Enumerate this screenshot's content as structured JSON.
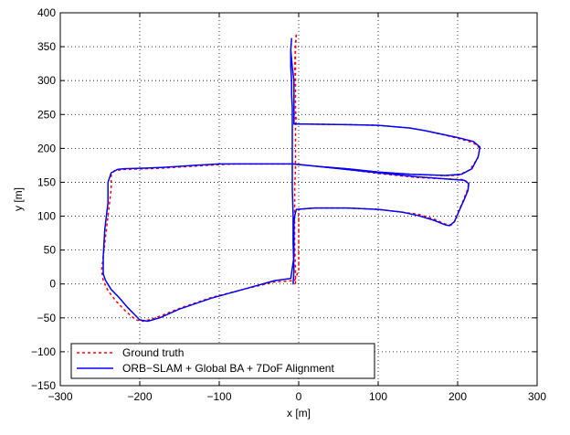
{
  "chart_data": {
    "type": "line",
    "xlabel": "x [m]",
    "ylabel": "y [m]",
    "xlim": [
      -300,
      300
    ],
    "ylim": [
      -150,
      400
    ],
    "xticks": [
      -300,
      -200,
      -100,
      0,
      100,
      200,
      300
    ],
    "yticks": [
      -150,
      -100,
      -50,
      0,
      50,
      100,
      150,
      200,
      250,
      300,
      350,
      400
    ],
    "xtick_labels": [
      "−300",
      "−200",
      "−100",
      "0",
      "100",
      "200",
      "300"
    ],
    "ytick_labels": [
      "−150",
      "−100",
      "−50",
      "0",
      "50",
      "100",
      "150",
      "200",
      "250",
      "300",
      "350",
      "400"
    ],
    "grid": true,
    "legend_position": "bottom-left",
    "series": [
      {
        "name": "Ground truth",
        "color": "#ff0000",
        "style": "dotted",
        "points": [
          [
            -4,
            0
          ],
          [
            -4,
            20
          ],
          [
            -5,
            60
          ],
          [
            -5,
            100
          ],
          [
            -5,
            140
          ],
          [
            -4,
            170
          ],
          [
            -4,
            200
          ],
          [
            -4,
            240
          ],
          [
            -4,
            280
          ],
          [
            -4,
            320
          ],
          [
            -4,
            345
          ],
          [
            -3,
            370
          ],
          [
            -3,
            370
          ],
          [
            -4,
            355
          ],
          [
            -5,
            320
          ],
          [
            -4,
            290
          ],
          [
            -4,
            260
          ],
          [
            -3,
            236
          ],
          [
            8,
            236
          ],
          [
            60,
            235
          ],
          [
            100,
            234
          ],
          [
            140,
            230
          ],
          [
            160,
            226
          ],
          [
            200,
            215
          ],
          [
            220,
            208
          ],
          [
            228,
            200
          ],
          [
            225,
            185
          ],
          [
            215,
            168
          ],
          [
            200,
            160
          ],
          [
            178,
            160
          ],
          [
            140,
            162
          ],
          [
            100,
            165
          ],
          [
            60,
            170
          ],
          [
            20,
            174
          ],
          [
            -5,
            177
          ],
          [
            -40,
            177
          ],
          [
            -80,
            177
          ],
          [
            -100,
            176
          ],
          [
            -130,
            174
          ],
          [
            -170,
            171
          ],
          [
            -190,
            170
          ],
          [
            -220,
            169
          ],
          [
            -232,
            167
          ],
          [
            -236,
            160
          ],
          [
            -236,
            140
          ],
          [
            -240,
            100
          ],
          [
            -244,
            60
          ],
          [
            -248,
            20
          ],
          [
            -246,
            5
          ],
          [
            -240,
            -10
          ],
          [
            -230,
            -25
          ],
          [
            -218,
            -40
          ],
          [
            -205,
            -53
          ],
          [
            -195,
            -55
          ],
          [
            -180,
            -50
          ],
          [
            -150,
            -36
          ],
          [
            -110,
            -20
          ],
          [
            -70,
            -8
          ],
          [
            -30,
            3
          ],
          [
            -5,
            5
          ],
          [
            0,
            20
          ],
          [
            0,
            60
          ],
          [
            0,
            100
          ],
          [
            0,
            110
          ],
          [
            20,
            112
          ],
          [
            60,
            112
          ],
          [
            100,
            110
          ],
          [
            130,
            106
          ],
          [
            150,
            103
          ],
          [
            170,
            96
          ],
          [
            185,
            88
          ],
          [
            192,
            87
          ],
          [
            196,
            92
          ],
          [
            200,
            104
          ],
          [
            206,
            120
          ],
          [
            212,
            138
          ],
          [
            214,
            148
          ],
          [
            208,
            154
          ],
          [
            185,
            155
          ],
          [
            150,
            157
          ],
          [
            100,
            163
          ],
          [
            60,
            169
          ],
          [
            20,
            174
          ],
          [
            -5,
            177
          ]
        ]
      },
      {
        "name": "ORB−SLAM + Global BA + 7DoF Alignment",
        "color": "#0000ff",
        "style": "solid",
        "points": [
          [
            -7,
            0
          ],
          [
            -6,
            20
          ],
          [
            -7,
            60
          ],
          [
            -7,
            100
          ],
          [
            -8,
            140
          ],
          [
            -8,
            170
          ],
          [
            -8,
            200
          ],
          [
            -8,
            240
          ],
          [
            -8,
            260
          ],
          [
            -9,
            280
          ],
          [
            -9,
            300
          ],
          [
            -10,
            320
          ],
          [
            -10,
            345
          ],
          [
            -9,
            362
          ],
          [
            -9,
            362
          ],
          [
            -10,
            345
          ],
          [
            -8,
            320
          ],
          [
            -6,
            300
          ],
          [
            -6,
            280
          ],
          [
            -6,
            236
          ],
          [
            8,
            236
          ],
          [
            60,
            235
          ],
          [
            100,
            234
          ],
          [
            140,
            230
          ],
          [
            160,
            226
          ],
          [
            200,
            216
          ],
          [
            220,
            210
          ],
          [
            228,
            202
          ],
          [
            226,
            188
          ],
          [
            218,
            170
          ],
          [
            205,
            162
          ],
          [
            185,
            160
          ],
          [
            140,
            162
          ],
          [
            100,
            165
          ],
          [
            60,
            170
          ],
          [
            20,
            174
          ],
          [
            -8,
            177
          ],
          [
            -40,
            177
          ],
          [
            -80,
            177
          ],
          [
            -100,
            177
          ],
          [
            -130,
            175
          ],
          [
            -170,
            172
          ],
          [
            -190,
            171
          ],
          [
            -220,
            170
          ],
          [
            -228,
            169
          ],
          [
            -236,
            164
          ],
          [
            -240,
            150
          ],
          [
            -240,
            120
          ],
          [
            -244,
            80
          ],
          [
            -246,
            40
          ],
          [
            -246,
            15
          ],
          [
            -243,
            5
          ],
          [
            -236,
            -8
          ],
          [
            -226,
            -20
          ],
          [
            -215,
            -35
          ],
          [
            -200,
            -53
          ],
          [
            -190,
            -55
          ],
          [
            -175,
            -50
          ],
          [
            -150,
            -37
          ],
          [
            -110,
            -21
          ],
          [
            -70,
            -8
          ],
          [
            -30,
            5
          ],
          [
            -10,
            8
          ],
          [
            -6,
            40
          ],
          [
            -6,
            90
          ],
          [
            -5,
            100
          ],
          [
            -3,
            110
          ],
          [
            20,
            112
          ],
          [
            60,
            112
          ],
          [
            100,
            110
          ],
          [
            130,
            106
          ],
          [
            150,
            101
          ],
          [
            170,
            94
          ],
          [
            185,
            87
          ],
          [
            190,
            86
          ],
          [
            196,
            92
          ],
          [
            202,
            108
          ],
          [
            208,
            124
          ],
          [
            213,
            138
          ],
          [
            214,
            148
          ],
          [
            208,
            153
          ],
          [
            185,
            155
          ],
          [
            150,
            158
          ],
          [
            100,
            164
          ],
          [
            60,
            169
          ],
          [
            20,
            174
          ],
          [
            -8,
            177
          ]
        ]
      }
    ]
  }
}
